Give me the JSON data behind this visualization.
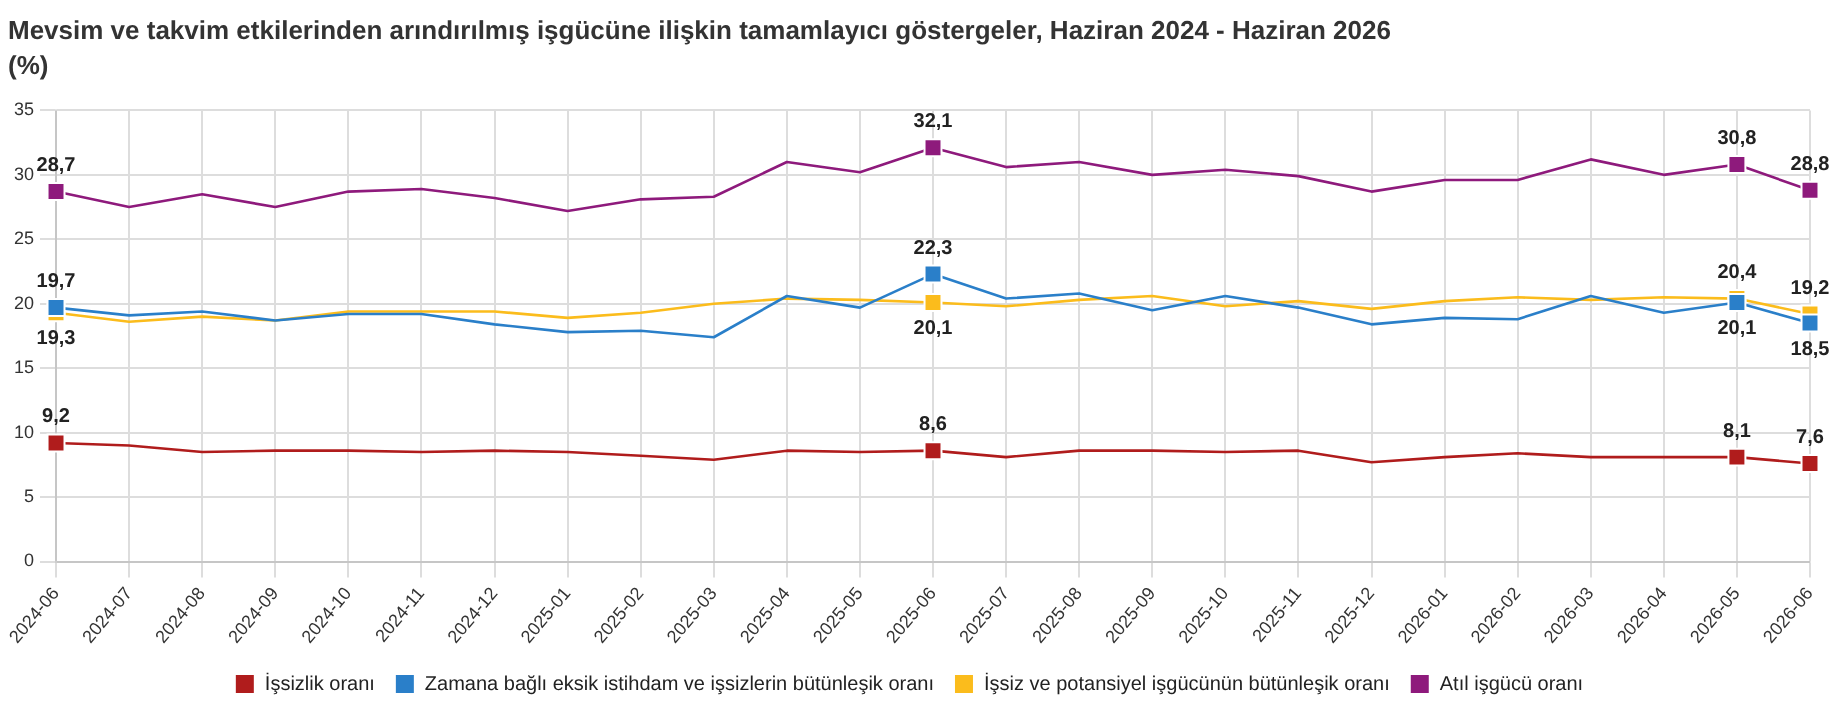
{
  "chart_data": {
    "type": "line",
    "title": "Mevsim ve takvim etkilerinden arındırılmış işgücüne ilişkin tamamlayıcı göstergeler, Haziran 2024 - Haziran 2026",
    "subtitle": "(%)",
    "categories": [
      "2024-06",
      "2024-07",
      "2024-08",
      "2024-09",
      "2024-10",
      "2024-11",
      "2024-12",
      "2025-01",
      "2025-02",
      "2025-03",
      "2025-04",
      "2025-05",
      "2025-06",
      "2025-07",
      "2025-08",
      "2025-09",
      "2025-10",
      "2025-11",
      "2025-12",
      "2026-01",
      "2026-02",
      "2026-03",
      "2026-04",
      "2026-05",
      "2026-06"
    ],
    "series": [
      {
        "name": "İşsizlik oranı",
        "color": "#b01c1c",
        "values": [
          9.2,
          9.0,
          8.5,
          8.6,
          8.6,
          8.5,
          8.6,
          8.5,
          8.2,
          7.9,
          8.6,
          8.5,
          8.6,
          8.1,
          8.6,
          8.6,
          8.5,
          8.6,
          7.7,
          8.1,
          8.4,
          8.1,
          8.1,
          8.1,
          7.6
        ],
        "value_labels": [
          "9,2",
          null,
          null,
          null,
          null,
          null,
          null,
          null,
          null,
          null,
          null,
          null,
          "8,6",
          null,
          null,
          null,
          null,
          null,
          null,
          null,
          null,
          null,
          null,
          "8,1",
          "7,6"
        ]
      },
      {
        "name": "Zamana bağlı eksik istihdam ve işsizlerin bütünleşik oranı",
        "color": "#2a7fc9",
        "values": [
          19.7,
          19.1,
          19.4,
          18.7,
          19.2,
          19.2,
          18.4,
          17.8,
          17.9,
          17.4,
          20.6,
          19.7,
          22.3,
          20.4,
          20.8,
          19.5,
          20.6,
          19.7,
          18.4,
          18.9,
          18.8,
          20.6,
          19.3,
          20.1,
          18.5
        ],
        "value_labels": [
          "19,7",
          null,
          null,
          null,
          null,
          null,
          null,
          null,
          null,
          null,
          null,
          null,
          "22,3",
          null,
          null,
          null,
          null,
          null,
          null,
          null,
          null,
          null,
          null,
          "20,1",
          "18,5"
        ]
      },
      {
        "name": "İşsiz ve potansiyel işgücünün bütünleşik oranı",
        "color": "#fbbc1c",
        "values": [
          19.3,
          18.6,
          19.0,
          18.7,
          19.4,
          19.4,
          19.4,
          18.9,
          19.3,
          20.0,
          20.4,
          20.3,
          20.1,
          19.8,
          20.3,
          20.6,
          19.8,
          20.2,
          19.6,
          20.2,
          20.5,
          20.3,
          20.5,
          20.4,
          19.2
        ],
        "value_labels": [
          "19,3",
          null,
          null,
          null,
          null,
          null,
          null,
          null,
          null,
          null,
          null,
          null,
          "20,1",
          null,
          null,
          null,
          null,
          null,
          null,
          null,
          null,
          null,
          null,
          "20,4",
          "19,2"
        ]
      },
      {
        "name": "Atıl işgücü oranı",
        "color": "#8e1a7c",
        "values": [
          28.7,
          27.5,
          28.5,
          27.5,
          28.7,
          28.9,
          28.2,
          27.2,
          28.1,
          28.3,
          31.0,
          30.2,
          32.1,
          30.6,
          31.0,
          30.0,
          30.4,
          29.9,
          28.7,
          29.6,
          29.6,
          31.2,
          30.0,
          30.8,
          28.8
        ],
        "value_labels": [
          "28,7",
          null,
          null,
          null,
          null,
          null,
          null,
          null,
          null,
          null,
          null,
          null,
          "32,1",
          null,
          null,
          null,
          null,
          null,
          null,
          null,
          null,
          null,
          null,
          "30,8",
          "28,8"
        ]
      }
    ],
    "ylim": [
      0,
      35
    ],
    "yticks": [
      0,
      5,
      10,
      15,
      20,
      25,
      30,
      35
    ],
    "grid": true,
    "legend": "bottom",
    "line_style": "solid"
  }
}
